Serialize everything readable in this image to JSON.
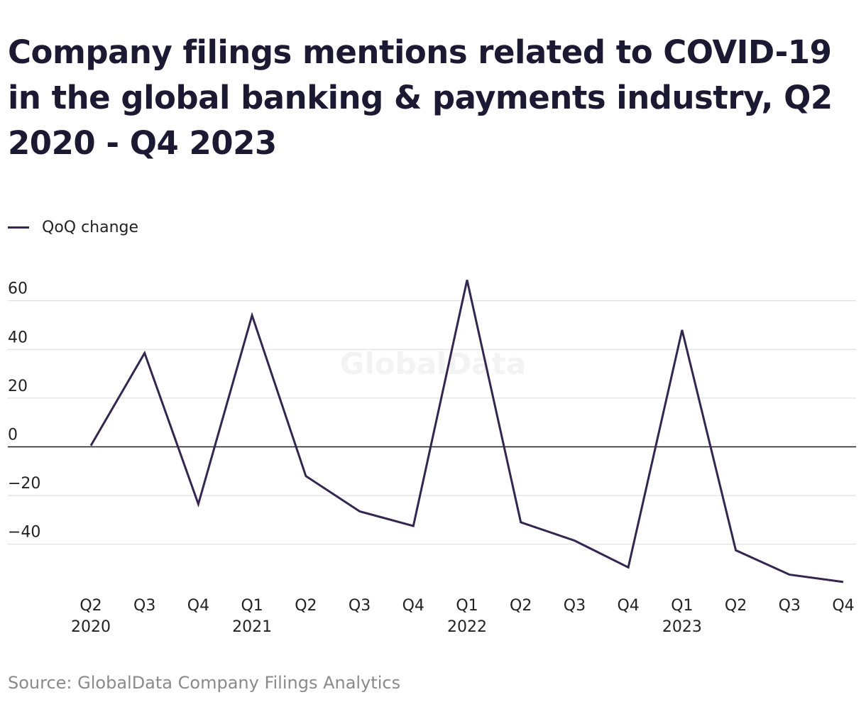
{
  "chart_data": {
    "type": "line",
    "title": "Company filings mentions related to COVID-19 in the global banking & payments industry, Q2 2020 - Q4 2023",
    "categories": [
      "Q2",
      "Q3",
      "Q4",
      "Q1",
      "Q2",
      "Q3",
      "Q4",
      "Q1",
      "Q2",
      "Q3",
      "Q4",
      "Q1",
      "Q2",
      "Q3",
      "Q4"
    ],
    "year_labels": [
      "2020",
      "",
      "",
      "2021",
      "",
      "",
      "",
      "2022",
      "",
      "",
      "",
      "2023",
      "",
      "",
      ""
    ],
    "series": [
      {
        "name": "QoQ change",
        "color": "#33264f",
        "values": [
          0.5,
          38.5,
          -23.5,
          54,
          -12,
          -26.5,
          -32.5,
          68.5,
          -31,
          -38.5,
          -49.5,
          48,
          -42.5,
          -52.5,
          -55.5
        ]
      }
    ],
    "yticks": [
      60,
      40,
      20,
      0,
      -20,
      -40
    ],
    "ytick_labels": [
      "60",
      "40",
      "20",
      "0",
      "−20",
      "−40"
    ],
    "ylim": [
      -60,
      70
    ],
    "grid": true,
    "legend": "top-left",
    "watermark": "GlobalData",
    "source": "Source: GlobalData Company Filings Analytics"
  }
}
